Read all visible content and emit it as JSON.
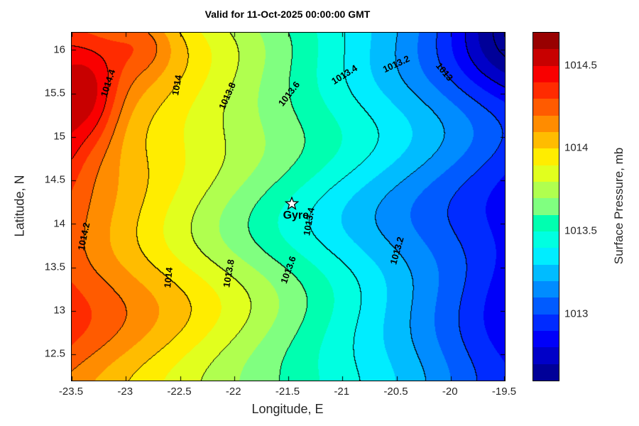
{
  "chart_data": {
    "type": "heatmap",
    "subtype": "filled_contour_map",
    "title": "Valid for 11-Oct-2025 00:00:00 GMT",
    "xlabel": "Longitude, E",
    "ylabel": "Latitude, N",
    "colorbar_label": "Surface Pressure, mb",
    "x_range": [
      -23.5,
      -19.5
    ],
    "y_range": [
      12.2,
      16.2
    ],
    "x_ticks": [
      {
        "v": -23.5,
        "label": "-23.5"
      },
      {
        "v": -23,
        "label": "-23"
      },
      {
        "v": -22.5,
        "label": "-22.5"
      },
      {
        "v": -22,
        "label": "-22"
      },
      {
        "v": -21.5,
        "label": "-21.5"
      },
      {
        "v": -21,
        "label": "-21"
      },
      {
        "v": -20.5,
        "label": "-20.5"
      },
      {
        "v": -20,
        "label": "-20"
      },
      {
        "v": -19.5,
        "label": "-19.5"
      }
    ],
    "y_ticks": [
      {
        "v": 12.5,
        "label": "12.5"
      },
      {
        "v": 13,
        "label": "13"
      },
      {
        "v": 13.5,
        "label": "13.5"
      },
      {
        "v": 14,
        "label": "14"
      },
      {
        "v": 14.5,
        "label": "14.5"
      },
      {
        "v": 15,
        "label": "15"
      },
      {
        "v": 15.5,
        "label": "15.5"
      },
      {
        "v": 16,
        "label": "16"
      }
    ],
    "colorbar_ticks": [
      {
        "v": 1013,
        "label": "1013"
      },
      {
        "v": 1013.5,
        "label": "1013.5"
      },
      {
        "v": 1014,
        "label": "1014"
      },
      {
        "v": 1014.5,
        "label": "1014.5"
      }
    ],
    "fill_levels": {
      "min": 1012.6,
      "step": 0.1,
      "count": 21
    },
    "line_levels": {
      "offset": 1012.8,
      "step": 0.2
    },
    "contour_line_values": [
      1013,
      1013.2,
      1013.4,
      1013.6,
      1013.8,
      1014,
      1014.2,
      1014.4
    ],
    "colors": [
      "#000098",
      "#0000C8",
      "#0000F9",
      "#002BFF",
      "#005BFF",
      "#008CFF",
      "#00BCFF",
      "#00EDFF",
      "#00FFE1",
      "#00FFB0",
      "#80FF80",
      "#B0FF4F",
      "#E1FF1E",
      "#FFED00",
      "#FFBC00",
      "#FF8C00",
      "#FF5B00",
      "#FF2B00",
      "#F90000",
      "#C80000",
      "#980000"
    ],
    "marker": {
      "label": "Gyre",
      "lon": -21.47,
      "lat": 14.23,
      "symbol": "white-star"
    },
    "contour_labels": [
      {
        "text": "1014.4",
        "value": 1014.4,
        "lat": 15.62,
        "rot": -72
      },
      {
        "text": "1014.2",
        "value": 1014.2,
        "lat": 13.86,
        "rot": -78
      },
      {
        "text": "1014",
        "value": 1014.0,
        "lat": 15.6,
        "rot": -80
      },
      {
        "text": "1014",
        "value": 1014.0,
        "lat": 13.38,
        "rot": -84
      },
      {
        "text": "1013.8",
        "value": 1013.8,
        "lat": 15.47,
        "rot": -66
      },
      {
        "text": "1013.8",
        "value": 1013.8,
        "lat": 13.43,
        "rot": -80
      },
      {
        "text": "1013.6",
        "value": 1013.6,
        "lat": 15.5,
        "rot": -52
      },
      {
        "text": "1013.6",
        "value": 1013.6,
        "lat": 13.47,
        "rot": -70
      },
      {
        "text": "1013.4",
        "value": 1013.4,
        "lat": 15.72,
        "rot": -32
      },
      {
        "text": "1013.4",
        "value": 1013.4,
        "lat": 14.03,
        "rot": -80
      },
      {
        "text": "1013.2",
        "value": 1013.2,
        "lat": 15.84,
        "rot": -25
      },
      {
        "text": "1013.2",
        "value": 1013.2,
        "lat": 13.69,
        "rot": -74
      },
      {
        "text": "1013",
        "value": 1013.0,
        "lat": 15.75,
        "rot": 50
      }
    ],
    "field_model": {
      "base": 1013.58,
      "lon0": -21.5,
      "slope": -0.34,
      "waves": [
        {
          "a": 0.07,
          "kLat": 2.4,
          "kLon": 0.5,
          "ph": 0.5
        },
        {
          "a": 0.045,
          "kLat": 4.2,
          "kLon": -0.9,
          "ph": 2.0
        }
      ],
      "bumps": [
        {
          "lon": -23.35,
          "lat": 15.35,
          "amp": 0.3,
          "sLon": 0.28,
          "sLat": 0.6
        },
        {
          "lon": -23.6,
          "lat": 14.9,
          "amp": 0.18,
          "sLon": 0.2,
          "sLat": 0.5
        },
        {
          "lon": -22.85,
          "lat": 16.1,
          "amp": 0.15,
          "sLon": 0.3,
          "sLat": 0.35
        },
        {
          "lon": -19.45,
          "lat": 16.4,
          "amp": -0.3,
          "sLon": 0.55,
          "sLat": 0.8
        },
        {
          "lon": -19.6,
          "lat": 12.3,
          "amp": -0.1,
          "sLon": 0.6,
          "sLat": 0.7
        }
      ]
    }
  }
}
